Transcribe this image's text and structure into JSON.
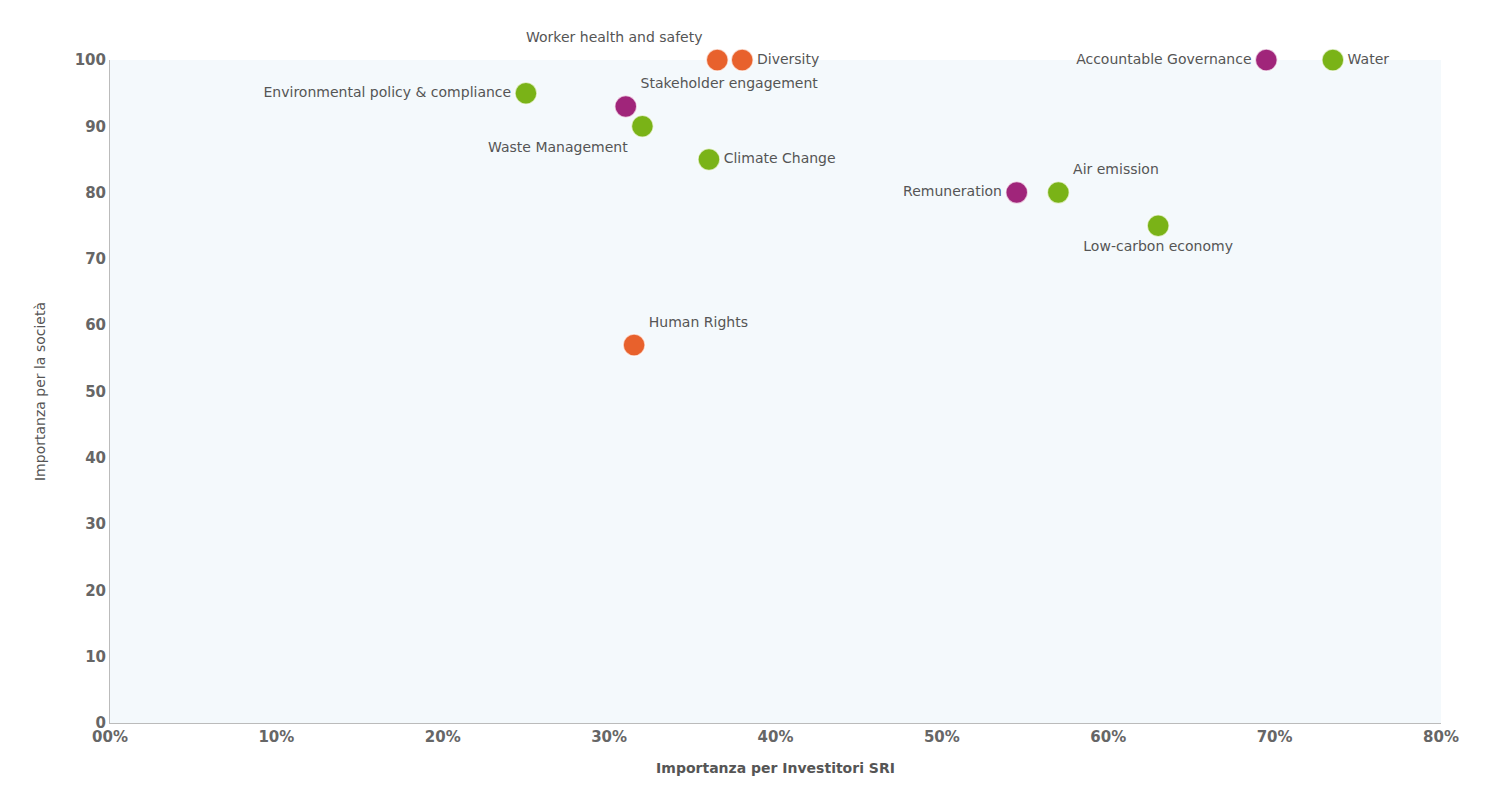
{
  "chart_data": {
    "type": "scatter",
    "x_label": "Importanza per Investitori SRI",
    "y_label": "Importanza per la società",
    "labels": [
      "Worker health and safety",
      "Diversity",
      "Environmental policy & compliance",
      "Stakeholder engagement",
      "Waste Management",
      "Climate Change",
      "Accountable Governance",
      "Water",
      "Remuneration",
      "Air emission",
      "Low-carbon economy",
      "Human Rights"
    ],
    "x": [
      36.5,
      38,
      25,
      31,
      32,
      36,
      69.5,
      73.5,
      54.5,
      57,
      63,
      31.5
    ],
    "y": [
      100,
      100,
      95,
      93,
      90,
      85,
      100,
      100,
      80,
      80,
      75,
      57
    ],
    "colors": [
      "#e8612c",
      "#e8612c",
      "#7ab317",
      "#a0257a",
      "#7ab317",
      "#7ab317",
      "#a0257a",
      "#7ab317",
      "#a0257a",
      "#7ab317",
      "#7ab317",
      "#e8612c"
    ],
    "xlim": [
      0,
      80
    ],
    "xticks": [
      {
        "value": 0,
        "label": "00%"
      },
      {
        "value": 10,
        "label": "10%"
      },
      {
        "value": 20,
        "label": "20%"
      },
      {
        "value": 30,
        "label": "30%"
      },
      {
        "value": 40,
        "label": "40%"
      },
      {
        "value": 50,
        "label": "50%"
      },
      {
        "value": 60,
        "label": "60%"
      },
      {
        "value": 70,
        "label": "70%"
      },
      {
        "value": 80,
        "label": "80%"
      }
    ],
    "ylim": [
      0,
      100
    ],
    "yticks": [
      0,
      10,
      20,
      30,
      40,
      50,
      60,
      70,
      80,
      90,
      100
    ],
    "grid": false
  }
}
